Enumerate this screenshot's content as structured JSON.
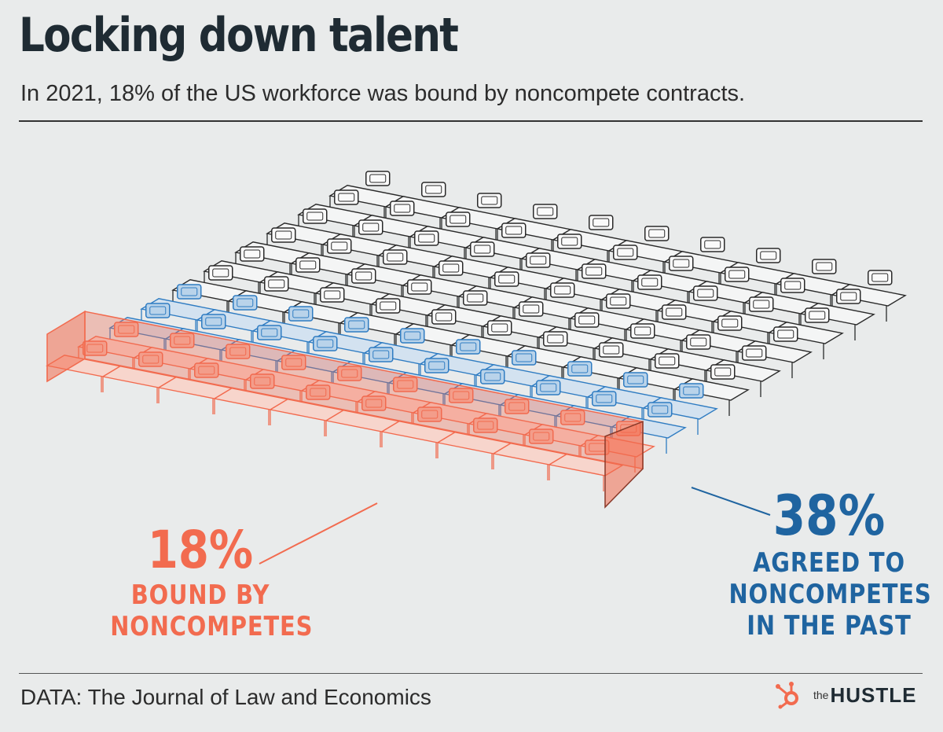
{
  "header": {
    "title": "Locking down talent",
    "subtitle": "In 2021, 18% of the US workforce was bound by noncompete contracts."
  },
  "annotations": {
    "bound": {
      "percent": "18%",
      "line1": "BOUND BY",
      "line2": "NONCOMPETES"
    },
    "agreed": {
      "percent": "38%",
      "line1": "AGREED TO",
      "line2": "NONCOMPETES",
      "line3": "IN THE PAST"
    }
  },
  "footer": {
    "source": "DATA: The Journal of Law and Economics",
    "brand_the": "the",
    "brand_name": "HUSTLE"
  },
  "colors": {
    "background": "#e9ebeb",
    "bound": "#f26b4f",
    "agreed": "#2f7cc2",
    "neutral": "#2a2a2a"
  },
  "icons": {
    "brand_logo": "hubspot-sprocket-icon"
  },
  "chart_data": {
    "type": "illustrated-proportion",
    "categories": [
      "Bound by noncompetes",
      "Agreed to noncompetes in the past"
    ],
    "values": [
      18,
      38
    ],
    "unit": "%"
  }
}
